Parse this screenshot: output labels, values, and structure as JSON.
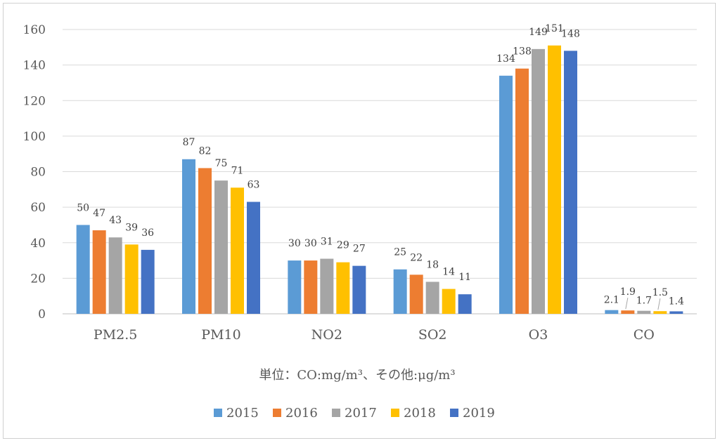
{
  "chart_data": {
    "type": "bar",
    "categories": [
      "PM2.5",
      "PM10",
      "NO2",
      "SO2",
      "O3",
      "CO"
    ],
    "series": [
      {
        "name": "2015",
        "color": "#5B9BD5",
        "values": [
          50,
          87,
          30,
          25,
          134,
          2.1
        ]
      },
      {
        "name": "2016",
        "color": "#ED7D31",
        "values": [
          47,
          82,
          30,
          22,
          138,
          1.9
        ]
      },
      {
        "name": "2017",
        "color": "#A5A5A5",
        "values": [
          43,
          75,
          31,
          18,
          149,
          1.7
        ]
      },
      {
        "name": "2018",
        "color": "#FFC000",
        "values": [
          39,
          71,
          29,
          14,
          151,
          1.5
        ]
      },
      {
        "name": "2019",
        "color": "#4472C4",
        "values": [
          36,
          63,
          27,
          11,
          148,
          1.4
        ]
      }
    ],
    "ylim": [
      0,
      160
    ],
    "yticks": [
      0,
      20,
      40,
      60,
      80,
      100,
      120,
      140,
      160
    ],
    "grid": true,
    "note": "単位：CO:mg/m³、その他:μg/m³",
    "legend_position": "bottom"
  }
}
